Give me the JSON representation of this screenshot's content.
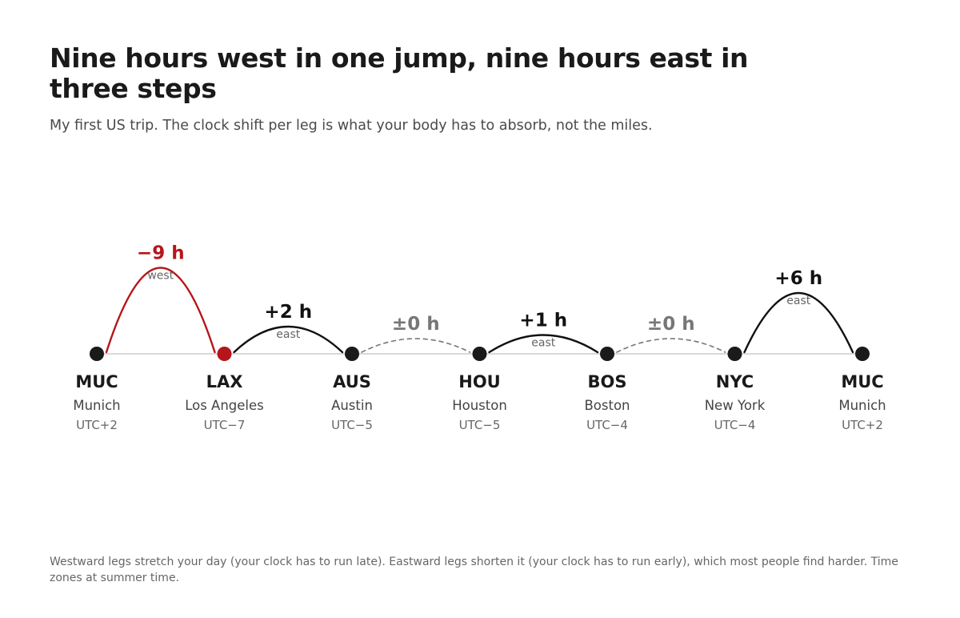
{
  "header": {
    "title": "Nine hours west in one jump, nine hours east in three steps",
    "subtitle": "My first US trip. The clock shift per leg is what your body has to absorb, not the miles."
  },
  "stops": [
    {
      "code": "MUC",
      "city": "Munich",
      "tz": "UTC+2"
    },
    {
      "code": "LAX",
      "city": "Los Angeles",
      "tz": "UTC−7"
    },
    {
      "code": "AUS",
      "city": "Austin",
      "tz": "UTC−5"
    },
    {
      "code": "HOU",
      "city": "Houston",
      "tz": "UTC−5"
    },
    {
      "code": "BOS",
      "city": "Boston",
      "tz": "UTC−4"
    },
    {
      "code": "NYC",
      "city": "New York",
      "tz": "UTC−4"
    },
    {
      "code": "MUC",
      "city": "Munich",
      "tz": "UTC+2"
    }
  ],
  "legs": [
    {
      "shift_label": "−9 h",
      "direction": "west",
      "hours": -9
    },
    {
      "shift_label": "+2 h",
      "direction": "east",
      "hours": 2
    },
    {
      "shift_label": "±0 h",
      "direction": "",
      "hours": 0
    },
    {
      "shift_label": "+1 h",
      "direction": "east",
      "hours": 1
    },
    {
      "shift_label": "±0 h",
      "direction": "",
      "hours": 0
    },
    {
      "shift_label": "+6 h",
      "direction": "east",
      "hours": 6
    }
  ],
  "colors": {
    "west": "#b5161b",
    "east": "#111111",
    "neutral": "#777777",
    "baseline": "#d9d9d9",
    "node": "#1a1a1a"
  },
  "footnote": "Westward legs stretch your day (your clock has to run late). Eastward legs shorten it (your clock has to run early), which most people find harder. Time zones at summer time."
}
